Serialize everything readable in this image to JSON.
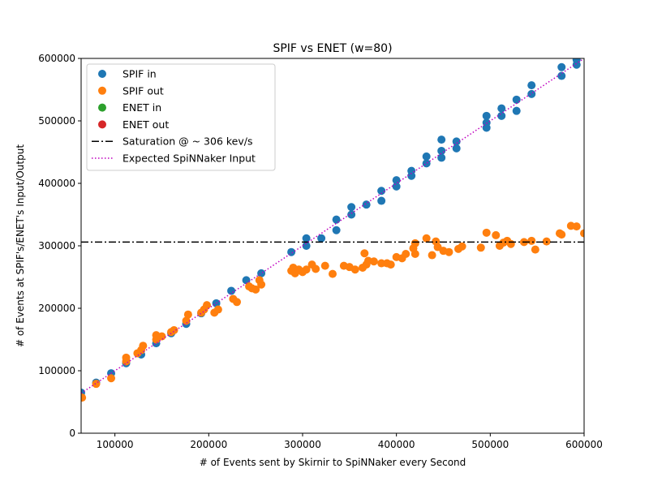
{
  "chart_data": {
    "type": "scatter",
    "title": "SPIF vs ENET (w=80)",
    "xlabel": "# of Events sent by Skirnir to SpiNNaker every Second",
    "ylabel": "# of Events at SPIF's/ENET's Input/Output",
    "xlim": [
      64000,
      600000
    ],
    "ylim": [
      0,
      600000
    ],
    "x_ticks": [
      100000,
      200000,
      300000,
      400000,
      500000,
      600000
    ],
    "y_ticks": [
      0,
      100000,
      200000,
      300000,
      400000,
      500000,
      600000
    ],
    "grid": false,
    "legend_position": "top-left",
    "series": [
      {
        "name": "SPIF in",
        "kind": "marker",
        "color": "#1f77b4",
        "points": [
          [
            64000,
            65000
          ],
          [
            80000,
            81000
          ],
          [
            96000,
            96000
          ],
          [
            112000,
            112000
          ],
          [
            128000,
            126000
          ],
          [
            144000,
            144000
          ],
          [
            160000,
            160000
          ],
          [
            176000,
            175000
          ],
          [
            192000,
            192000
          ],
          [
            208000,
            208000
          ],
          [
            224000,
            228000
          ],
          [
            240000,
            245000
          ],
          [
            256000,
            256000
          ],
          [
            288000,
            290000
          ],
          [
            304000,
            300000
          ],
          [
            304000,
            312000
          ],
          [
            320000,
            312000
          ],
          [
            336000,
            325000
          ],
          [
            336000,
            342000
          ],
          [
            352000,
            350000
          ],
          [
            352000,
            362000
          ],
          [
            368000,
            366000
          ],
          [
            384000,
            372000
          ],
          [
            384000,
            388000
          ],
          [
            400000,
            395000
          ],
          [
            400000,
            405000
          ],
          [
            416000,
            412000
          ],
          [
            416000,
            420000
          ],
          [
            432000,
            432000
          ],
          [
            432000,
            443000
          ],
          [
            448000,
            441000
          ],
          [
            448000,
            452000
          ],
          [
            448000,
            470000
          ],
          [
            464000,
            456000
          ],
          [
            464000,
            467000
          ],
          [
            496000,
            489000
          ],
          [
            496000,
            497000
          ],
          [
            496000,
            508000
          ],
          [
            512000,
            508000
          ],
          [
            512000,
            520000
          ],
          [
            528000,
            516000
          ],
          [
            528000,
            534000
          ],
          [
            544000,
            543000
          ],
          [
            544000,
            557000
          ],
          [
            576000,
            572000
          ],
          [
            576000,
            586000
          ],
          [
            592000,
            590000
          ],
          [
            592000,
            598000
          ]
        ]
      },
      {
        "name": "SPIF out",
        "kind": "marker",
        "color": "#ff7f0e",
        "points": [
          [
            65000,
            57000
          ],
          [
            80000,
            79000
          ],
          [
            96000,
            88000
          ],
          [
            112000,
            115000
          ],
          [
            112000,
            121000
          ],
          [
            124000,
            128000
          ],
          [
            128000,
            133000
          ],
          [
            130000,
            140000
          ],
          [
            144000,
            150000
          ],
          [
            144000,
            157000
          ],
          [
            150000,
            155000
          ],
          [
            160000,
            162000
          ],
          [
            163000,
            165000
          ],
          [
            176000,
            180000
          ],
          [
            178000,
            190000
          ],
          [
            192000,
            193000
          ],
          [
            195000,
            198000
          ],
          [
            198000,
            205000
          ],
          [
            206000,
            193000
          ],
          [
            210000,
            198000
          ],
          [
            226000,
            215000
          ],
          [
            230000,
            210000
          ],
          [
            243000,
            235000
          ],
          [
            246000,
            232000
          ],
          [
            250000,
            230000
          ],
          [
            254000,
            245000
          ],
          [
            256000,
            238000
          ],
          [
            288000,
            260000
          ],
          [
            290000,
            265000
          ],
          [
            292000,
            256000
          ],
          [
            296000,
            262000
          ],
          [
            300000,
            258000
          ],
          [
            304000,
            262000
          ],
          [
            310000,
            270000
          ],
          [
            314000,
            263000
          ],
          [
            324000,
            268000
          ],
          [
            332000,
            255000
          ],
          [
            344000,
            268000
          ],
          [
            350000,
            266000
          ],
          [
            356000,
            262000
          ],
          [
            364000,
            265000
          ],
          [
            366000,
            288000
          ],
          [
            368000,
            270000
          ],
          [
            370000,
            276000
          ],
          [
            376000,
            275000
          ],
          [
            384000,
            272000
          ],
          [
            390000,
            272000
          ],
          [
            394000,
            270000
          ],
          [
            400000,
            282000
          ],
          [
            406000,
            280000
          ],
          [
            410000,
            287000
          ],
          [
            418000,
            296000
          ],
          [
            420000,
            287000
          ],
          [
            420000,
            304000
          ],
          [
            432000,
            312000
          ],
          [
            438000,
            285000
          ],
          [
            442000,
            307000
          ],
          [
            444000,
            298000
          ],
          [
            450000,
            292000
          ],
          [
            456000,
            290000
          ],
          [
            466000,
            295000
          ],
          [
            470000,
            299000
          ],
          [
            490000,
            297000
          ],
          [
            496000,
            321000
          ],
          [
            506000,
            317000
          ],
          [
            510000,
            300000
          ],
          [
            514000,
            305000
          ],
          [
            518000,
            308000
          ],
          [
            522000,
            303000
          ],
          [
            536000,
            306000
          ],
          [
            544000,
            308000
          ],
          [
            548000,
            294000
          ],
          [
            560000,
            307000
          ],
          [
            574000,
            320000
          ],
          [
            576000,
            318000
          ],
          [
            586000,
            332000
          ],
          [
            592000,
            331000
          ],
          [
            600000,
            320000
          ]
        ]
      },
      {
        "name": "ENET in",
        "kind": "marker",
        "color": "#2ca02c",
        "points": []
      },
      {
        "name": "ENET out",
        "kind": "marker",
        "color": "#d62728",
        "points": []
      },
      {
        "name": "Saturation @ ~ 306 kev/s",
        "kind": "hline",
        "value": 306000,
        "color": "#000000",
        "dash": "dashdot"
      },
      {
        "name": "Expected SpiNNaker Input",
        "kind": "line",
        "points": [
          [
            64000,
            64000
          ],
          [
            600000,
            600000
          ]
        ],
        "color": "#bf00bf",
        "dash": "dotted"
      }
    ]
  }
}
